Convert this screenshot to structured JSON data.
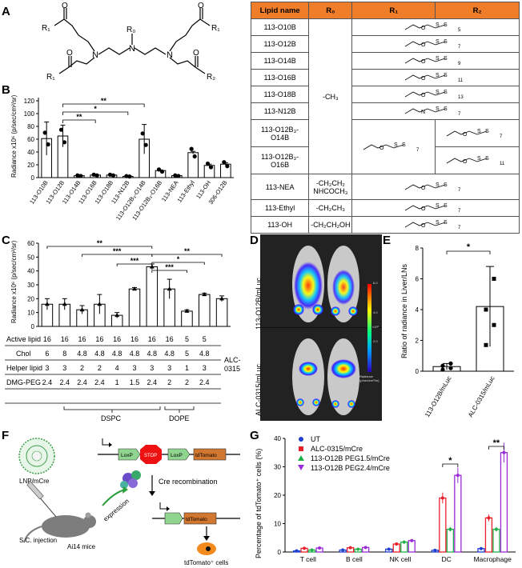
{
  "panels": {
    "A": "A",
    "B": "B",
    "C": "C",
    "D": "D",
    "E": "E",
    "F": "F",
    "G": "G"
  },
  "structure": {
    "r0": "R₀",
    "r1": "R₁",
    "r2": "R₂",
    "o": "O",
    "n": "N"
  },
  "lipid_table": {
    "headers": [
      "Lipid name",
      "R₀",
      "R₁",
      "R₂"
    ],
    "names": [
      "113-O10B",
      "113-O12B",
      "113-O14B",
      "113-O16B",
      "113-O18B",
      "113-N12B",
      "113-O12B₃-\nO14B",
      "113-O12B₃-\nO16B",
      "113-NEA",
      "113-Ethyl",
      "113-OH"
    ],
    "r0_group": "-CH₃",
    "r0_nea": "-CH₂CH₂\nNHCOCH₃",
    "r0_ethyl": "-CH₂CH₃",
    "r0_oh": "-CH₂CH₂OH",
    "chain_subscripts": [
      "5",
      "7",
      "9",
      "11",
      "13",
      "7",
      "7",
      "9",
      "7",
      "11",
      "7",
      "7",
      "7"
    ]
  },
  "chart_b": {
    "ylabel": "Radiance x10⁶ (p/sec/cm²/sr)",
    "categories": [
      "113-O10B",
      "113-O12B",
      "113-O14B",
      "113-O16B",
      "113-O18B",
      "113-N12B",
      "113-O12B₃-O14B",
      "113-O12B₃-O16B",
      "113-NEA",
      "113-Ethyl",
      "113-OH",
      "306-O12B"
    ],
    "values": [
      61,
      65,
      3,
      4,
      4,
      2,
      60,
      11,
      3,
      39,
      19,
      21
    ],
    "errors": [
      26,
      17,
      1.5,
      1,
      1,
      0.5,
      23,
      1,
      0.5,
      2,
      2,
      2
    ],
    "ylim": [
      0,
      125
    ],
    "yticks": [
      "0",
      "20",
      "40",
      "60",
      "80",
      "100",
      "120"
    ],
    "sig": [
      "**",
      "*",
      "**"
    ]
  },
  "chart_c": {
    "ylabel": "Radiance x10⁶ (p/sec/cm²/sr)",
    "values": [
      16,
      16,
      12,
      16,
      8,
      27,
      43,
      27,
      11,
      23,
      20
    ],
    "errors": [
      4,
      4,
      3,
      7,
      2,
      1,
      2,
      7,
      1,
      1,
      2
    ],
    "ylim": [
      0,
      60
    ],
    "yticks": [
      "0",
      "10",
      "20",
      "30",
      "40",
      "50",
      "60"
    ],
    "sig": [
      "**",
      "***",
      "***",
      "***",
      "*",
      "**"
    ],
    "row_labels": [
      "Active lipid",
      "Chol",
      "Helper lipid",
      "DMG-PEG"
    ],
    "active_lipid": [
      "16",
      "16",
      "16",
      "16",
      "16",
      "16",
      "16",
      "16",
      "5",
      "5"
    ],
    "chol": [
      "6",
      "8",
      "4.8",
      "4.8",
      "4.8",
      "4.8",
      "4.8",
      "4.8",
      "5",
      "4.8"
    ],
    "helper": [
      "3",
      "3",
      "2",
      "2",
      "4",
      "3",
      "3",
      "3",
      "1",
      "3"
    ],
    "dmg_peg": [
      "2.4",
      "2.4",
      "2.4",
      "2.4",
      "1",
      "1.5",
      "2.4",
      "2",
      "2",
      "2.4"
    ],
    "alc": "ALC-\n0315",
    "dspc": "DSPC",
    "dope": "DOPE"
  },
  "panel_d": {
    "top": "113-O12B/mLuc",
    "bottom": "ALC-0315/mLuc",
    "radiance": "Radiance\n(p/sec/cm²/sr)",
    "scale": [
      "6.0",
      "4.0",
      "2.0"
    ],
    "scale_unit": "x10⁶"
  },
  "chart_e": {
    "ylabel": "Ratio of radiance in Liver/LNs",
    "categories": [
      "113-O12B/mLuc",
      "ALC-0315/mLuc"
    ],
    "values": [
      0.3,
      4.2
    ],
    "errors": [
      0.2,
      2.6
    ],
    "points": [
      [
        0.1,
        0.2,
        0.35,
        0.5
      ],
      [
        1.7,
        3.0,
        4.0,
        6.0
      ]
    ],
    "ylim": [
      0,
      8
    ],
    "yticks": [
      "0",
      "2",
      "4",
      "6",
      "8"
    ],
    "sig": "*"
  },
  "panel_f": {
    "lnp": "LNP/mCre",
    "loxp": "LoxP",
    "stop": "STOP",
    "tdtomato": "tdTomato",
    "cre": "Cre recombination",
    "expression": "expression",
    "sc": "S.C. injection",
    "mice": "Ai14 mice",
    "cells": "tdTomato⁺ cells"
  },
  "chart_g": {
    "ylabel": "Percentage of tdTomato⁺ cells (%)",
    "categories": [
      "T cell",
      "B cell",
      "NK cell",
      "DC",
      "Macrophage"
    ],
    "series": [
      {
        "name": "UT",
        "color": "#1f3fcf",
        "values": [
          0.4,
          0.7,
          1.0,
          0.6,
          1.2
        ]
      },
      {
        "name": "ALC-0315/mCre",
        "color": "#e8202a",
        "values": [
          1.3,
          1.5,
          2.8,
          19,
          12
        ]
      },
      {
        "name": "113-O12B PEG1.5/mCre",
        "color": "#22b04a",
        "values": [
          0.7,
          1.0,
          3.5,
          8,
          8
        ]
      },
      {
        "name": "113-O12B PEG2.4/mCre",
        "color": "#9a2bd6",
        "values": [
          1.4,
          1.6,
          4.0,
          27,
          35
        ]
      }
    ],
    "ylim": [
      0,
      40
    ],
    "yticks": [
      "0",
      "10",
      "20",
      "30",
      "40"
    ],
    "sig": [
      "*",
      "**"
    ]
  }
}
